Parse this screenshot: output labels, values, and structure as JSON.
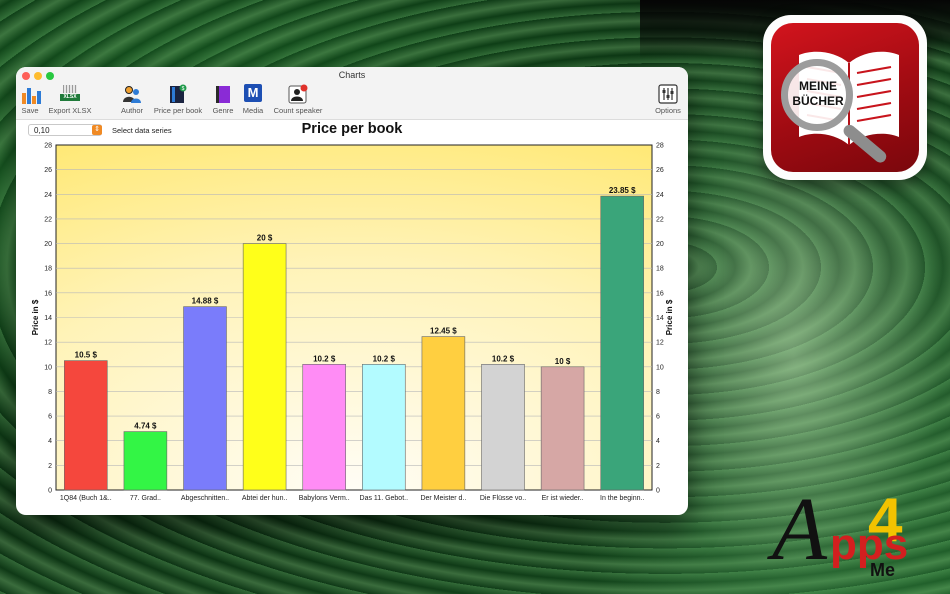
{
  "window": {
    "title": "Charts"
  },
  "toolbar": {
    "save": "Save",
    "export": "Export XLSX",
    "export_badge": "XLSX",
    "author": "Author",
    "price_per_book": "Price per book",
    "genre": "Genre",
    "media": "Media",
    "media_glyph": "M",
    "count_speaker": "Count speaker",
    "options": "Options"
  },
  "controls": {
    "stepper_value": "0,10",
    "series_label": "Select data series"
  },
  "app_icon": {
    "text_line1": "MEINE",
    "text_line2": "BÜCHER"
  },
  "brand": {
    "a": "A",
    "digit": "4",
    "pps": "pps",
    "me": "Me"
  },
  "chart_data": {
    "type": "bar",
    "title": "Price per book",
    "ylabel": "Price in $",
    "ylabel_right": "Price in $",
    "xlabel": "",
    "ylim": [
      0,
      28
    ],
    "yticks": [
      0,
      2,
      4,
      6,
      8,
      10,
      12,
      14,
      16,
      18,
      20,
      22,
      24,
      26,
      28
    ],
    "grid": true,
    "categories": [
      "1Q84 (Buch 1&..",
      "77. Grad..",
      "Abgeschnitten..",
      "Abtei der hun..",
      "Babylons Verm..",
      "Das 11. Gebot..",
      "Der Meister d..",
      "Die Flüsse vo..",
      "Er ist wieder..",
      "In the beginn.."
    ],
    "values": [
      10.5,
      4.74,
      14.88,
      20,
      10.2,
      10.2,
      12.45,
      10.2,
      10,
      23.85
    ],
    "value_labels": [
      "10.5 $",
      "4.74 $",
      "14.88 $",
      "20 $",
      "10.2 $",
      "10.2 $",
      "12.45 $",
      "10.2 $",
      "10 $",
      "23.85 $"
    ],
    "colors": [
      "#f5473d",
      "#33f545",
      "#7a7cfb",
      "#ffff1a",
      "#ff8cf5",
      "#b3fbff",
      "#ffcf40",
      "#d3d3d3",
      "#d6a7a5",
      "#3aa57a"
    ]
  }
}
